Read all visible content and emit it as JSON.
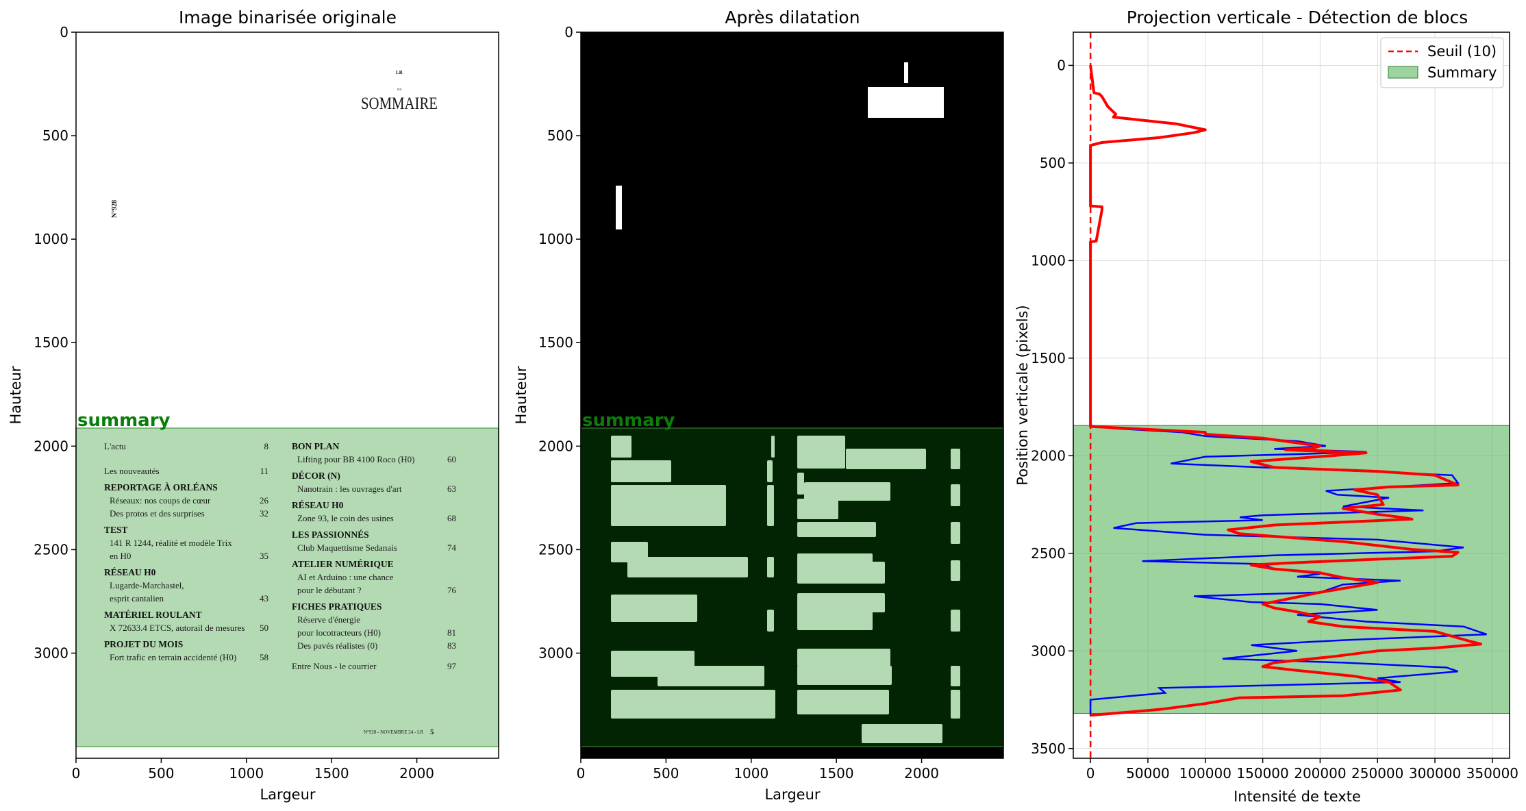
{
  "panels": {
    "left": {
      "title": "Image binarisée originale",
      "xlabel": "Largeur",
      "ylabel": "Hauteur",
      "xticks": [
        0,
        500,
        1000,
        1500,
        2000
      ],
      "yticks": [
        0,
        500,
        1000,
        1500,
        2000,
        2500,
        3000
      ],
      "xlim": [
        0,
        2480
      ],
      "ylim": [
        3508,
        0
      ],
      "block_label": "summary",
      "block_range": [
        1845,
        3320
      ]
    },
    "middle": {
      "title": "Après dilatation",
      "xlabel": "Largeur",
      "ylabel": "Hauteur",
      "xticks": [
        0,
        500,
        1000,
        1500,
        2000
      ],
      "yticks": [
        0,
        500,
        1000,
        1500,
        2000,
        2500,
        3000
      ],
      "block_label": "summary"
    },
    "right": {
      "title": "Projection verticale - Détection de blocs",
      "xlabel": "Intensité de texte",
      "ylabel": "Position verticale (pixels)",
      "xticks": [
        0,
        50000,
        100000,
        150000,
        200000,
        250000,
        300000,
        350000
      ],
      "yticks": [
        0,
        500,
        1000,
        1500,
        2000,
        2500,
        3000,
        3500
      ]
    }
  },
  "document": {
    "header_small": "LR",
    "header_tiny": "IMI",
    "title": "SOMMAIRE",
    "issue_vertical": "N°928",
    "footer_text": "N°928 - NOVEMBRE 24 - LR",
    "footer_page": "5",
    "left_column": [
      {
        "kind": "plain",
        "text": "L'actu",
        "page": "8"
      },
      {
        "kind": "plain",
        "text": "Les nouveautés",
        "page": "11"
      },
      {
        "kind": "head",
        "text": "REPORTAGE À ORLÉANS"
      },
      {
        "kind": "sub",
        "text": "Réseaux: nos coups de cœur",
        "page": "26"
      },
      {
        "kind": "sub",
        "text": "Des protos et des surprises",
        "page": "32"
      },
      {
        "kind": "head",
        "text": "TEST"
      },
      {
        "kind": "sub",
        "text": "141 R 1244, réalité et modèle Trix"
      },
      {
        "kind": "sub",
        "text": "en H0",
        "page": "35"
      },
      {
        "kind": "head",
        "text": "RÉSEAU H0"
      },
      {
        "kind": "sub",
        "text": "Lugarde-Marchastel,"
      },
      {
        "kind": "sub",
        "text": "esprit cantalien",
        "page": "43"
      },
      {
        "kind": "head",
        "text": "MATÉRIEL ROULANT"
      },
      {
        "kind": "sub",
        "text": "X 72633.4 ETCS, autorail de mesures",
        "page": "50"
      },
      {
        "kind": "head",
        "text": "PROJET DU MOIS"
      },
      {
        "kind": "sub",
        "text": "Fort trafic en terrain accidenté (H0)",
        "page": "58"
      }
    ],
    "right_column": [
      {
        "kind": "head",
        "text": "BON PLAN"
      },
      {
        "kind": "sub",
        "text": "Lifting pour BB 4100 Roco (H0)",
        "page": "60"
      },
      {
        "kind": "head",
        "text": "DÉCOR (N)"
      },
      {
        "kind": "sub",
        "text": "Nanotrain : les ouvrages d'art",
        "page": "63"
      },
      {
        "kind": "head",
        "text": "RÉSEAU H0"
      },
      {
        "kind": "sub",
        "text": "Zone 93, le coin des usines",
        "page": "68"
      },
      {
        "kind": "head",
        "text": "LES PASSIONNÉS"
      },
      {
        "kind": "sub",
        "text": "Club Maquettisme Sedanais",
        "page": "74"
      },
      {
        "kind": "head",
        "text": "ATELIER NUMÉRIQUE"
      },
      {
        "kind": "sub",
        "text": "AI et Arduino : une chance"
      },
      {
        "kind": "sub",
        "text": "pour le débutant ?",
        "page": "76"
      },
      {
        "kind": "head",
        "text": "FICHES PRATIQUES"
      },
      {
        "kind": "sub",
        "text": "Réserve d'énergie"
      },
      {
        "kind": "sub",
        "text": "pour locotracteurs (H0)",
        "page": "81"
      },
      {
        "kind": "sub",
        "text": "Des pavés réalistes (0)",
        "page": "83"
      },
      {
        "kind": "plain",
        "text": "Entre Nous - le courrier",
        "page": "97"
      }
    ]
  },
  "chart_data": [
    {
      "type": "image",
      "title": "Image binarisée originale",
      "xlabel": "Largeur",
      "ylabel": "Hauteur",
      "xlim": [
        0,
        2480
      ],
      "ylim": [
        3508,
        0
      ],
      "regions": [
        {
          "label": "summary",
          "y_start": 1845,
          "y_end": 3320,
          "color": "#a8d8a8"
        }
      ]
    },
    {
      "type": "image",
      "title": "Après dilatation",
      "xlabel": "Largeur",
      "ylabel": "Hauteur",
      "xlim": [
        0,
        2480
      ],
      "ylim": [
        3508,
        0
      ],
      "regions": [
        {
          "label": "summary",
          "y_start": 1845,
          "y_end": 3320,
          "color": "#0b3d0b"
        }
      ]
    },
    {
      "type": "line",
      "title": "Projection verticale - Détection de blocs",
      "xlabel": "Intensité de texte",
      "ylabel": "Position verticale (pixels)",
      "xlim": [
        -15000,
        365000
      ],
      "ylim": [
        3550,
        -170
      ],
      "y_inverted": true,
      "grid": true,
      "legend_position": "top-right",
      "threshold": {
        "name": "Seuil (10)",
        "value": 10,
        "color": "#ff0000",
        "style": "dashed"
      },
      "blocks": [
        {
          "name": "Summary",
          "y_start": 1845,
          "y_end": 3320,
          "color": "#4caf50"
        }
      ],
      "raw_series": {
        "color": "#0000ff",
        "y": [
          1845,
          1860,
          1880,
          1900,
          1925,
          1950,
          1965,
          1980,
          1990,
          2005,
          2040,
          2060,
          2080,
          2100,
          2140,
          2180,
          2200,
          2215,
          2260,
          2280,
          2305,
          2315,
          2330,
          2345,
          2370,
          2405,
          2430,
          2470,
          2490,
          2510,
          2540,
          2555,
          2580,
          2605,
          2620,
          2640,
          2660,
          2700,
          2720,
          2750,
          2760,
          2790,
          2815,
          2850,
          2875,
          2915,
          2945,
          2970,
          3000,
          3040,
          3060,
          3085,
          3105,
          3140,
          3160,
          3190,
          3215,
          3250,
          3290,
          3330
        ],
        "x": [
          0,
          20000,
          80000,
          100000,
          180000,
          205000,
          160000,
          240000,
          190000,
          100000,
          70000,
          150000,
          240000,
          315000,
          320000,
          205000,
          215000,
          260000,
          220000,
          290000,
          150000,
          130000,
          150000,
          40000,
          20000,
          100000,
          250000,
          325000,
          300000,
          160000,
          45000,
          150000,
          160000,
          200000,
          180000,
          270000,
          220000,
          200000,
          90000,
          140000,
          200000,
          250000,
          180000,
          240000,
          325000,
          345000,
          220000,
          140000,
          180000,
          115000,
          220000,
          310000,
          320000,
          250000,
          270000,
          60000,
          65000,
          0,
          0,
          0
        ]
      },
      "smoothed_series": {
        "color": "#ff0000",
        "y": [
          0,
          140,
          148,
          160,
          210,
          250,
          265,
          300,
          330,
          345,
          370,
          395,
          410,
          720,
          725,
          740,
          900,
          905,
          1850,
          1880,
          1890,
          1910,
          1950,
          1960,
          1970,
          1985,
          2000,
          2030,
          2060,
          2080,
          2100,
          2150,
          2160,
          2175,
          2200,
          2250,
          2270,
          2300,
          2315,
          2325,
          2340,
          2355,
          2380,
          2400,
          2440,
          2480,
          2495,
          2515,
          2530,
          2550,
          2560,
          2580,
          2600,
          2625,
          2650,
          2680,
          2700,
          2760,
          2780,
          2800,
          2825,
          2850,
          2875,
          2900,
          2950,
          2965,
          2985,
          3000,
          3030,
          3060,
          3080,
          3100,
          3130,
          3160,
          3200,
          3230,
          3240,
          3270,
          3300,
          3330
        ],
        "x": [
          0,
          3000,
          8000,
          10000,
          15000,
          22000,
          20000,
          75000,
          100000,
          90000,
          60000,
          10000,
          0,
          0,
          10000,
          10000,
          5000,
          0,
          0,
          100000,
          100000,
          150000,
          200000,
          195000,
          170000,
          240000,
          210000,
          140000,
          160000,
          250000,
          300000,
          320000,
          260000,
          230000,
          250000,
          255000,
          220000,
          250000,
          270000,
          280000,
          220000,
          160000,
          120000,
          130000,
          220000,
          280000,
          320000,
          315000,
          250000,
          170000,
          140000,
          160000,
          200000,
          220000,
          250000,
          220000,
          200000,
          150000,
          160000,
          180000,
          200000,
          190000,
          220000,
          300000,
          330000,
          340000,
          300000,
          250000,
          210000,
          160000,
          150000,
          180000,
          230000,
          260000,
          270000,
          220000,
          130000,
          100000,
          60000,
          0
        ]
      }
    }
  ]
}
